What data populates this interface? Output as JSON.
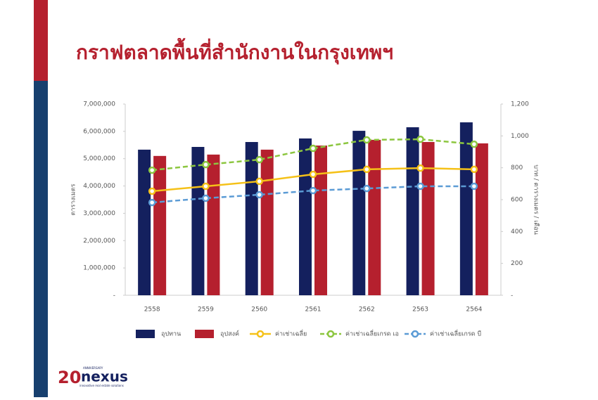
{
  "chart_data": {
    "type": "bar",
    "title": "กราฟตลาดพื้นที่สำนักงานในกรุงเทพฯ",
    "ylabel": "ตารางเมตร",
    "y2label": "บาท / ตารางเมตร / เดือน",
    "categories": [
      "2558",
      "2559",
      "2560",
      "2561",
      "2562",
      "2563",
      "2564"
    ],
    "series": [
      {
        "name": "อุปทาน",
        "type": "bar",
        "color": "#14205e",
        "values": [
          5330000,
          5430000,
          5610000,
          5740000,
          6020000,
          6150000,
          6330000
        ]
      },
      {
        "name": "อุปสงค์",
        "type": "bar",
        "color": "#b5202e",
        "values": [
          5100000,
          5150000,
          5330000,
          5480000,
          5690000,
          5610000,
          5560000
        ]
      },
      {
        "name": "ค่าเช่าเฉลี่ย",
        "type": "line",
        "axis": "y2",
        "dashed": false,
        "color": "#f5c118",
        "values": [
          653,
          684,
          715,
          759,
          790,
          798,
          790
        ]
      },
      {
        "name": "ค่าเช่าเฉลี่ยเกรด เอ",
        "type": "line",
        "axis": "y2",
        "dashed": true,
        "color": "#8cc63f",
        "values": [
          785,
          820,
          851,
          922,
          975,
          979,
          948
        ]
      },
      {
        "name": "ค่าเช่าเฉลี่ยเกรด บี",
        "type": "line",
        "axis": "y2",
        "dashed": true,
        "color": "#5b9bd5",
        "values": [
          582,
          609,
          631,
          657,
          670,
          684,
          684
        ]
      }
    ],
    "ylim": [
      0,
      7000000
    ],
    "yticks": [
      {
        "value": 0,
        "label": "-"
      },
      {
        "value": 1000000,
        "label": "1,000,000"
      },
      {
        "value": 2000000,
        "label": "2,000,000"
      },
      {
        "value": 3000000,
        "label": "3,000,000"
      },
      {
        "value": 4000000,
        "label": "4,000,000"
      },
      {
        "value": 5000000,
        "label": "5,000,000"
      },
      {
        "value": 6000000,
        "label": "6,000,000"
      },
      {
        "value": 7000000,
        "label": "7,000,000"
      }
    ],
    "y2lim": [
      0,
      1200
    ],
    "y2ticks": [
      {
        "value": 0,
        "label": "-"
      },
      200,
      400,
      600,
      800,
      {
        "value": 1000,
        "label": "1,000"
      },
      {
        "value": 1200,
        "label": "1,200"
      }
    ],
    "grid": false,
    "legend": "bottom"
  },
  "logo": {
    "number": "20",
    "tag": "ANNIVERSARY",
    "brand": "nexus",
    "slogan": "innovative real estate solutions"
  }
}
